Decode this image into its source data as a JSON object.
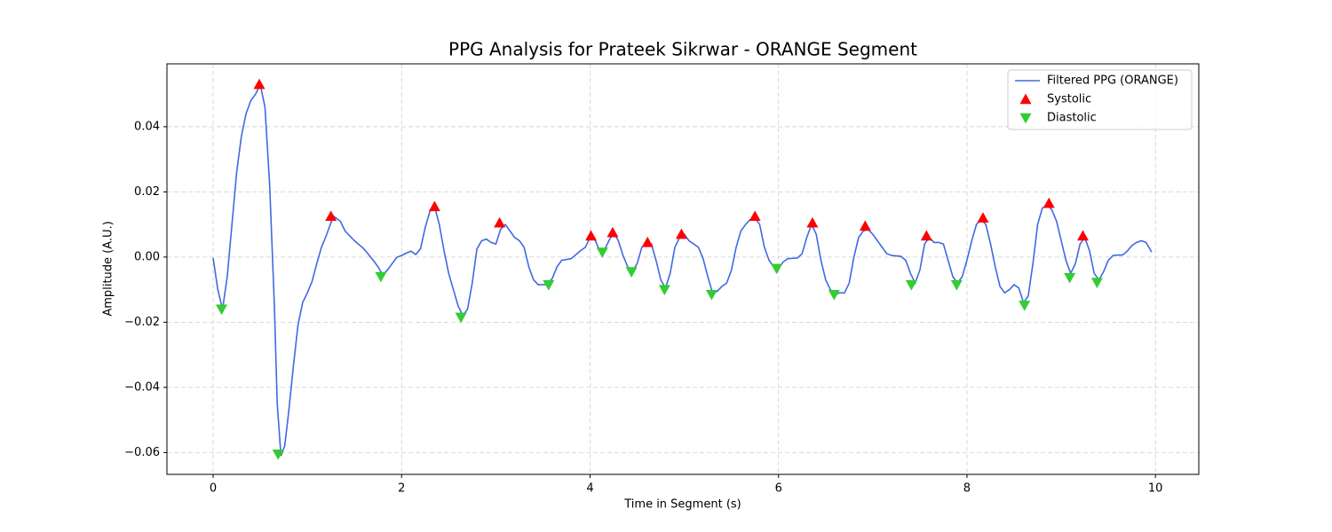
{
  "chart_data": {
    "type": "line",
    "title": "PPG Analysis for Prateek Sikrwar - ORANGE Segment",
    "x_label": "Time in Segment (s)",
    "y_label": "Amplitude (A.U.)",
    "xlim": [
      -0.49,
      10.46
    ],
    "ylim": [
      -0.0667,
      0.0593
    ],
    "xticks": [
      0,
      2,
      4,
      6,
      8,
      10
    ],
    "yticks": [
      {
        "value": -0.06,
        "label": "−0.06"
      },
      {
        "value": -0.04,
        "label": "−0.04"
      },
      {
        "value": -0.02,
        "label": "−0.02"
      },
      {
        "value": 0,
        "label": "0.00"
      },
      0.02,
      0.04
    ],
    "grid": true,
    "legend": "upper right",
    "series": [
      {
        "name": "Filtered PPG (ORANGE)",
        "color": "#4169e1",
        "kind": "line",
        "x": [
          0,
          0.05,
          0.1,
          0.15,
          0.2,
          0.25,
          0.3,
          0.35,
          0.4,
          0.45,
          0.5,
          0.55,
          0.6,
          0.65,
          0.68,
          0.72,
          0.76,
          0.8,
          0.85,
          0.9,
          0.95,
          1,
          1.05,
          1.1,
          1.15,
          1.2,
          1.25,
          1.28,
          1.35,
          1.4,
          1.5,
          1.6,
          1.7,
          1.75,
          1.8,
          1.85,
          1.9,
          1.95,
          2,
          2.05,
          2.1,
          2.15,
          2.2,
          2.25,
          2.3,
          2.35,
          2.4,
          2.45,
          2.5,
          2.55,
          2.6,
          2.65,
          2.7,
          2.75,
          2.8,
          2.85,
          2.9,
          2.95,
          3,
          3.05,
          3.1,
          3.15,
          3.2,
          3.25,
          3.3,
          3.35,
          3.4,
          3.45,
          3.55,
          3.6,
          3.65,
          3.7,
          3.8,
          3.9,
          3.95,
          4,
          4.05,
          4.1,
          4.15,
          4.2,
          4.25,
          4.3,
          4.35,
          4.4,
          4.45,
          4.5,
          4.55,
          4.6,
          4.65,
          4.7,
          4.75,
          4.8,
          4.85,
          4.9,
          4.95,
          5,
          5.05,
          5.1,
          5.15,
          5.2,
          5.25,
          5.3,
          5.35,
          5.4,
          5.45,
          5.5,
          5.55,
          5.6,
          5.65,
          5.7,
          5.75,
          5.8,
          5.85,
          5.9,
          5.95,
          6,
          6.05,
          6.1,
          6.2,
          6.25,
          6.3,
          6.35,
          6.4,
          6.45,
          6.5,
          6.55,
          6.6,
          6.65,
          6.7,
          6.75,
          6.8,
          6.85,
          6.9,
          6.95,
          7,
          7.05,
          7.1,
          7.15,
          7.2,
          7.3,
          7.35,
          7.4,
          7.45,
          7.5,
          7.55,
          7.6,
          7.65,
          7.7,
          7.75,
          7.8,
          7.85,
          7.9,
          7.95,
          8,
          8.05,
          8.1,
          8.15,
          8.2,
          8.25,
          8.3,
          8.35,
          8.4,
          8.45,
          8.5,
          8.55,
          8.6,
          8.65,
          8.7,
          8.75,
          8.8,
          8.85,
          8.9,
          8.95,
          9,
          9.05,
          9.1,
          9.15,
          9.2,
          9.25,
          9.3,
          9.35,
          9.4,
          9.45,
          9.5,
          9.55,
          9.6,
          9.65,
          9.7,
          9.75,
          9.8,
          9.85,
          9.9,
          9.96
        ],
        "values": [
          -0.0003,
          -0.01,
          -0.016,
          -0.006,
          0.01,
          0.026,
          0.037,
          0.044,
          0.048,
          0.05,
          0.053,
          0.046,
          0.022,
          -0.015,
          -0.045,
          -0.061,
          -0.058,
          -0.048,
          -0.034,
          -0.021,
          -0.014,
          -0.011,
          -0.0075,
          -0.002,
          0.003,
          0.0065,
          0.0105,
          0.0125,
          0.011,
          0.008,
          0.005,
          0.0025,
          -0.001,
          -0.003,
          -0.0055,
          -0.004,
          -0.002,
          -0.0001,
          0.0005,
          0.0012,
          0.0018,
          0.0008,
          0.0025,
          0.009,
          0.014,
          0.0155,
          0.01,
          0.002,
          -0.005,
          -0.01,
          -0.015,
          -0.018,
          -0.016,
          -0.008,
          0.0025,
          0.005,
          0.0055,
          0.0045,
          0.004,
          0.0085,
          0.01,
          0.008,
          0.006,
          0.005,
          0.003,
          -0.003,
          -0.007,
          -0.0085,
          -0.0085,
          -0.0065,
          -0.003,
          -0.001,
          -0.0005,
          0.002,
          0.003,
          0.006,
          0.0055,
          0.002,
          0.002,
          0.005,
          0.0075,
          0.005,
          0.0005,
          -0.003,
          -0.0045,
          -0.002,
          0.003,
          0.004,
          0.004,
          -0.001,
          -0.007,
          -0.0095,
          -0.005,
          0.003,
          0.006,
          0.007,
          0.005,
          0.004,
          0.003,
          -0.0005,
          -0.006,
          -0.011,
          -0.0105,
          -0.009,
          -0.008,
          -0.004,
          0.003,
          0.008,
          0.01,
          0.0115,
          0.012,
          0.01,
          0.003,
          -0.001,
          -0.003,
          -0.0035,
          -0.0015,
          -0.0005,
          -0.0003,
          0.001,
          0.006,
          0.01,
          0.007,
          -0.001,
          -0.007,
          -0.01,
          -0.0115,
          -0.011,
          -0.011,
          -0.008,
          0,
          0.006,
          0.008,
          0.0085,
          0.007,
          0.005,
          0.003,
          0.001,
          0.0005,
          0.0002,
          -0.001,
          -0.005,
          -0.008,
          -0.004,
          0.004,
          0.006,
          0.0045,
          0.0045,
          0.004,
          -0.001,
          -0.006,
          -0.008,
          -0.006,
          -0.001,
          0.005,
          0.01,
          0.0115,
          0.01,
          0.004,
          -0.003,
          -0.009,
          -0.011,
          -0.01,
          -0.0085,
          -0.0095,
          -0.014,
          -0.012,
          -0.002,
          0.01,
          0.015,
          0.016,
          0.0145,
          0.011,
          0.005,
          -0.001,
          -0.005,
          -0.002,
          0.004,
          0.006,
          0.002,
          -0.005,
          -0.007,
          -0.0045,
          -0.001,
          0.0005,
          0.0006,
          0.0006,
          0.0018,
          0.0035,
          0.0045,
          0.005,
          0.0045,
          0.0015
        ]
      },
      {
        "name": "Systolic",
        "color": "#ff0000",
        "kind": "scatter",
        "marker": "triangle-up",
        "x": [
          0.49,
          1.25,
          2.35,
          3.04,
          4.01,
          4.24,
          4.61,
          4.97,
          5.75,
          6.36,
          6.92,
          7.57,
          8.17,
          8.87,
          9.23
        ],
        "values": [
          0.053,
          0.0125,
          0.0155,
          0.0105,
          0.0065,
          0.0075,
          0.0045,
          0.007,
          0.0125,
          0.0105,
          0.0095,
          0.0065,
          0.012,
          0.0165,
          0.0065
        ]
      },
      {
        "name": "Diastolic",
        "color": "#32cd32",
        "kind": "scatter",
        "marker": "triangle-down",
        "x": [
          0.09,
          0.69,
          1.78,
          2.63,
          3.56,
          4.13,
          4.44,
          4.79,
          5.29,
          5.98,
          6.59,
          7.41,
          7.89,
          8.61,
          9.09,
          9.38
        ],
        "values": [
          -0.016,
          -0.0605,
          -0.006,
          -0.0185,
          -0.0085,
          0.0015,
          -0.0045,
          -0.01,
          -0.0115,
          -0.0035,
          -0.0115,
          -0.0085,
          -0.0085,
          -0.0148,
          -0.0063,
          -0.0078
        ]
      }
    ]
  }
}
